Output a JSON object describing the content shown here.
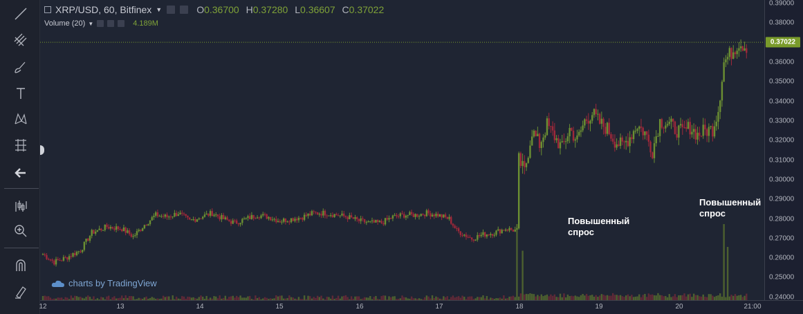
{
  "toolbar": {
    "tools": [
      {
        "name": "trend-line-tool",
        "icon": "trend-line-icon"
      },
      {
        "name": "pitchfork-tool",
        "icon": "pitchfork-icon"
      },
      {
        "name": "brush-tool",
        "icon": "brush-icon"
      },
      {
        "name": "text-tool",
        "icon": "text-icon"
      },
      {
        "name": "pattern-tool",
        "icon": "pattern-icon"
      },
      {
        "name": "measure-tool",
        "icon": "measure-icon"
      },
      {
        "name": "back-tool",
        "icon": "arrow-left-icon"
      },
      {
        "name": "indicators-tool",
        "icon": "indicators-icon"
      },
      {
        "name": "zoom-tool",
        "icon": "zoom-in-icon"
      },
      {
        "name": "magnet-tool",
        "icon": "magnet-icon"
      },
      {
        "name": "lock-tool",
        "icon": "lock-pencil-icon"
      }
    ]
  },
  "legend": {
    "symbol": "XRP/USD, 60, Bitfinex",
    "o_label": "O",
    "o_value": "0.36700",
    "h_label": "H",
    "h_value": "0.37280",
    "l_label": "L",
    "l_value": "0.36607",
    "c_label": "C",
    "c_value": "0.37022",
    "volume_label": "Volume (20)",
    "volume_value": "4.189M"
  },
  "annotations": [
    {
      "text": "Повышенный\nспрос"
    },
    {
      "text": "Повышенный\nспрос"
    }
  ],
  "watermark": "charts by TradingView",
  "last_price_label": "0.37022",
  "colors": {
    "up": "#6b8f32",
    "down": "#a0283a",
    "vol_up": "#556b2f",
    "vol_down": "#6b2a38",
    "background": "#1f2533",
    "last_price": "#7a9b2b"
  },
  "chart_data": {
    "type": "candlestick",
    "symbol": "XRP/USD",
    "interval": "60",
    "exchange": "Bitfinex",
    "y_ticks": [
      "0.39000",
      "0.38000",
      "0.37000",
      "0.36000",
      "0.35000",
      "0.34000",
      "0.33000",
      "0.32000",
      "0.31000",
      "0.30000",
      "0.29000",
      "0.28000",
      "0.27000",
      "0.26000",
      "0.25000",
      "0.24000"
    ],
    "ylim": [
      0.2385,
      0.3918
    ],
    "x_ticks": [
      "12",
      "13",
      "14",
      "15",
      "16",
      "17",
      "18",
      "19",
      "20",
      "21:00"
    ],
    "last_price": 0.37022,
    "grid": false,
    "price_path": [
      [
        0,
        0.262
      ],
      [
        6,
        0.258
      ],
      [
        12,
        0.26
      ],
      [
        20,
        0.264
      ],
      [
        26,
        0.273
      ],
      [
        34,
        0.276
      ],
      [
        42,
        0.275
      ],
      [
        48,
        0.271
      ],
      [
        54,
        0.277
      ],
      [
        60,
        0.282
      ],
      [
        66,
        0.281
      ],
      [
        72,
        0.283
      ],
      [
        78,
        0.279
      ],
      [
        84,
        0.281
      ],
      [
        90,
        0.283
      ],
      [
        96,
        0.28
      ],
      [
        102,
        0.278
      ],
      [
        108,
        0.28
      ],
      [
        114,
        0.282
      ],
      [
        120,
        0.281
      ],
      [
        126,
        0.279
      ],
      [
        132,
        0.28
      ],
      [
        138,
        0.281
      ],
      [
        144,
        0.283
      ],
      [
        150,
        0.283
      ],
      [
        156,
        0.282
      ],
      [
        162,
        0.281
      ],
      [
        168,
        0.279
      ],
      [
        174,
        0.278
      ],
      [
        180,
        0.278
      ],
      [
        186,
        0.281
      ],
      [
        192,
        0.282
      ],
      [
        198,
        0.282
      ],
      [
        204,
        0.283
      ],
      [
        210,
        0.282
      ],
      [
        216,
        0.28
      ],
      [
        220,
        0.274
      ],
      [
        224,
        0.272
      ],
      [
        228,
        0.27
      ],
      [
        234,
        0.272
      ],
      [
        240,
        0.273
      ],
      [
        246,
        0.275
      ],
      [
        252,
        0.274
      ],
      [
        253,
        0.31
      ],
      [
        256,
        0.304
      ],
      [
        260,
        0.325
      ],
      [
        264,
        0.318
      ],
      [
        268,
        0.328
      ],
      [
        272,
        0.322
      ],
      [
        276,
        0.316
      ],
      [
        280,
        0.326
      ],
      [
        284,
        0.32
      ],
      [
        288,
        0.33
      ],
      [
        292,
        0.334
      ],
      [
        296,
        0.329
      ],
      [
        300,
        0.326
      ],
      [
        304,
        0.32
      ],
      [
        308,
        0.317
      ],
      [
        312,
        0.322
      ],
      [
        316,
        0.328
      ],
      [
        320,
        0.324
      ],
      [
        324,
        0.315
      ],
      [
        328,
        0.33
      ],
      [
        332,
        0.329
      ],
      [
        336,
        0.326
      ],
      [
        340,
        0.324
      ],
      [
        344,
        0.327
      ],
      [
        348,
        0.323
      ],
      [
        352,
        0.325
      ],
      [
        356,
        0.326
      ],
      [
        359,
        0.336
      ],
      [
        362,
        0.36
      ],
      [
        366,
        0.365
      ],
      [
        370,
        0.37
      ],
      [
        374,
        0.368
      ]
    ],
    "volume_spikes": [
      {
        "candle": 252,
        "volume_ratio": 1.0
      },
      {
        "candle": 255,
        "volume_ratio": 0.65
      },
      {
        "candle": 362,
        "volume_ratio": 1.0
      },
      {
        "candle": 364,
        "volume_ratio": 0.7
      }
    ]
  }
}
